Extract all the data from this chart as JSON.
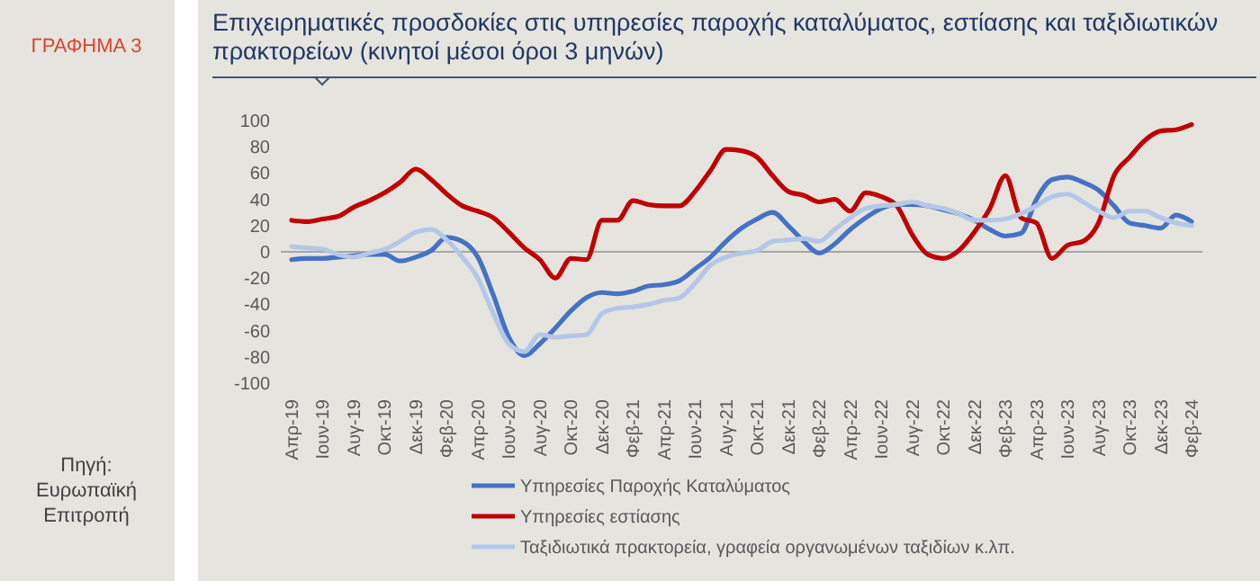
{
  "chart_data": {
    "type": "line",
    "title": "Επιχειρηματικές προσδοκίες στις υπηρεσίες παροχής καταλύματος, εστίασης και ταξιδιωτικών πρακτορείων (κινητοί μέσοι όροι 3 μηνών)",
    "annotations": [
      "ΓΡΑΦΗΜΑ 3",
      "Πηγή: Ευρωπαϊκή Επιτροπή"
    ],
    "categories": [
      "Απρ-19",
      null,
      "Ιουν-19",
      null,
      "Αυγ-19",
      null,
      "Οκτ-19",
      null,
      "Δεκ-19",
      null,
      "Φεβ-20",
      null,
      "Απρ-20",
      null,
      "Ιουν-20",
      null,
      "Αυγ-20",
      null,
      "Οκτ-20",
      null,
      "Δεκ-20",
      null,
      "Φεβ-21",
      null,
      "Απρ-21",
      null,
      "Ιουν-21",
      null,
      "Αυγ-21",
      null,
      "Οκτ-21",
      null,
      "Δεκ-21",
      null,
      "Φεβ-22",
      null,
      "Απρ-22",
      null,
      "Ιουν-22",
      null,
      "Αυγ-22",
      null,
      "Οκτ-22",
      null,
      "Δεκ-22",
      null,
      "Φεβ-23",
      null,
      "Απρ-23",
      null,
      "Ιουν-23",
      null,
      "Αυγ-23",
      null,
      "Οκτ-23",
      null,
      "Δεκ-23",
      null,
      "Φεβ-24"
    ],
    "series": [
      {
        "name": "Υπηρεσίες Παροχής Καταλύματος",
        "color": "#4472c4",
        "values": [
          -6,
          -5,
          -5,
          -4,
          -3,
          -2,
          -2,
          -7,
          -4,
          1,
          11,
          8,
          -4,
          -33,
          -65,
          -79,
          -70,
          -58,
          -45,
          -35,
          -31,
          -32,
          -30,
          -26,
          -25,
          -22,
          -13,
          -4,
          8,
          18,
          25,
          30,
          20,
          8,
          -1,
          6,
          17,
          26,
          33,
          36,
          36,
          35,
          32,
          29,
          24,
          17,
          12,
          14,
          40,
          55,
          57,
          53,
          47,
          35,
          22,
          20,
          18,
          28,
          23
        ]
      },
      {
        "name": "Υπηρεσίες εστίασης",
        "color": "#c00000",
        "values": [
          24,
          23,
          25,
          27,
          34,
          39,
          45,
          53,
          63,
          55,
          44,
          35,
          31,
          26,
          15,
          3,
          -6,
          -20,
          -5,
          -6,
          24,
          24,
          39,
          36,
          35,
          35,
          46,
          62,
          78,
          77,
          72,
          58,
          46,
          43,
          38,
          40,
          31,
          45,
          42,
          35,
          13,
          -2,
          -5,
          1,
          15,
          33,
          58,
          26,
          22,
          -5,
          5,
          8,
          22,
          58,
          72,
          85,
          92,
          93,
          97
        ]
      },
      {
        "name": "Ταξιδιωτικά πρακτορεία, γραφεία οργανωμένων ταξιδίων κ.λπ.",
        "color": "#b4c7e7",
        "values": [
          4,
          3,
          2,
          -2,
          -4,
          -1,
          2,
          8,
          15,
          17,
          9,
          -4,
          -20,
          -47,
          -70,
          -76,
          -63,
          -65,
          -64,
          -63,
          -47,
          -43,
          -42,
          -40,
          -37,
          -35,
          -24,
          -10,
          -4,
          -1,
          1,
          8,
          9,
          10,
          8,
          17,
          26,
          33,
          35,
          36,
          38,
          35,
          33,
          29,
          24,
          24,
          25,
          29,
          35,
          42,
          44,
          38,
          31,
          26,
          31,
          31,
          26,
          22,
          20
        ]
      }
    ],
    "ylim": [
      -100,
      100
    ],
    "yticks": [
      -100,
      -80,
      -60,
      -40,
      -20,
      0,
      20,
      40,
      60,
      80,
      100
    ],
    "ref_lines": [
      {
        "axis": "y",
        "value": 0,
        "color": "#a6a6a6"
      }
    ],
    "legend": "bottom",
    "grid": false,
    "line_style": "solid",
    "marker": "none"
  }
}
